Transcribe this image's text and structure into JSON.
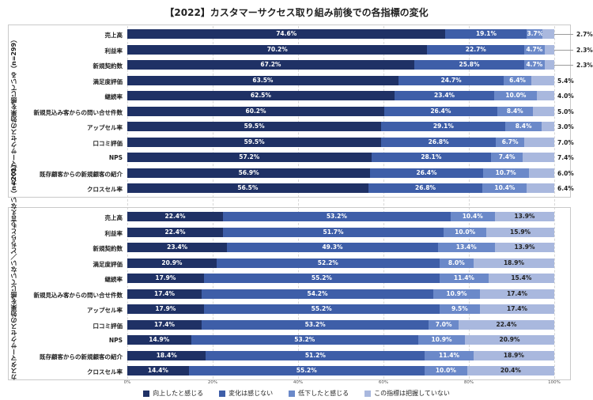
{
  "chart_data": {
    "type": "bar",
    "orientation": "horizontal-stacked-100",
    "title": "【2022】カスタマーサクセス取り組み前後での各指標の変化",
    "xlim": [
      0,
      100
    ],
    "x_ticks": [
      "0%",
      "20%",
      "40%",
      "60%",
      "80%",
      "100%"
    ],
    "legend_position": "bottom",
    "series_names": [
      "向上したと感じる",
      "変化は感じない",
      "低下したと感じる",
      "この指標は把握していない"
    ],
    "series_colors": [
      "#1f3165",
      "#3e5ea8",
      "#6b89c9",
      "#a9b8de"
    ],
    "groups": [
      {
        "label": "カスタマーサクセスの効果を感じている（n=299）",
        "categories": [
          "売上高",
          "利益率",
          "新規契約数",
          "満足度評価",
          "継続率",
          "新規見込み客からの問い合せ件数",
          "アップセル率",
          "口コミ評価",
          "NPS",
          "既存顧客からの新規顧客の紹介",
          "クロスセル率"
        ],
        "values": [
          [
            74.6,
            19.1,
            3.7,
            2.7
          ],
          [
            70.2,
            22.7,
            4.7,
            2.3
          ],
          [
            67.2,
            25.8,
            4.7,
            2.3
          ],
          [
            63.5,
            24.7,
            6.4,
            5.4
          ],
          [
            62.5,
            23.4,
            10.0,
            4.0
          ],
          [
            60.2,
            26.4,
            8.4,
            5.0
          ],
          [
            59.5,
            29.1,
            8.4,
            3.0
          ],
          [
            59.5,
            26.8,
            6.7,
            7.0
          ],
          [
            57.2,
            28.1,
            7.4,
            7.4
          ],
          [
            56.9,
            26.4,
            10.7,
            6.0
          ],
          [
            56.5,
            26.8,
            10.4,
            6.4
          ]
        ],
        "labels": [
          [
            "74.6%",
            "19.1%",
            "3.7%",
            "2.7%"
          ],
          [
            "70.2%",
            "22.7%",
            "4.7%",
            "2.3%"
          ],
          [
            "67.2%",
            "25.8%",
            "4.7%",
            "2.3%"
          ],
          [
            "63.5%",
            "24.7%",
            "6.4%",
            "5.4%"
          ],
          [
            "62.5%",
            "23.4%",
            "10.0%",
            "4.0%"
          ],
          [
            "60.2%",
            "26.4%",
            "8.4%",
            "5.0%"
          ],
          [
            "59.5%",
            "29.1%",
            "8.4%",
            "3.0%"
          ],
          [
            "59.5%",
            "26.8%",
            "6.7%",
            "7.0%"
          ],
          [
            "57.2%",
            "28.1%",
            "7.4%",
            "7.4%"
          ],
          [
            "56.9%",
            "26.4%",
            "10.7%",
            "6.0%"
          ],
          [
            "56.5%",
            "26.8%",
            "10.4%",
            "6.4%"
          ]
        ]
      },
      {
        "label": "カスタマーサクセスの効果を感じていない／どちらとも言えない（n=201）",
        "categories": [
          "売上高",
          "利益率",
          "新規契約数",
          "満足度評価",
          "継続率",
          "新規見込み客からの問い合せ件数",
          "アップセル率",
          "口コミ評価",
          "NPS",
          "既存顧客からの新規顧客の紹介",
          "クロスセル率"
        ],
        "values": [
          [
            22.4,
            53.2,
            10.4,
            13.9
          ],
          [
            22.4,
            51.7,
            10.0,
            15.9
          ],
          [
            23.4,
            49.3,
            13.4,
            13.9
          ],
          [
            20.9,
            52.2,
            8.0,
            18.9
          ],
          [
            17.9,
            55.2,
            11.4,
            15.4
          ],
          [
            17.4,
            54.2,
            10.9,
            17.4
          ],
          [
            17.9,
            55.2,
            9.5,
            17.4
          ],
          [
            17.4,
            53.2,
            7.0,
            22.4
          ],
          [
            14.9,
            53.2,
            10.9,
            20.9
          ],
          [
            18.4,
            51.2,
            11.4,
            18.9
          ],
          [
            14.4,
            55.2,
            10.0,
            20.4
          ]
        ],
        "labels": [
          [
            "22.4%",
            "53.2%",
            "10.4%",
            "13.9%"
          ],
          [
            "22.4%",
            "51.7%",
            "10.0%",
            "15.9%"
          ],
          [
            "23.4%",
            "49.3%",
            "13.4%",
            "13.9%"
          ],
          [
            "20.9%",
            "52.2%",
            "8.0%",
            "18.9%"
          ],
          [
            "17.9%",
            "55.2%",
            "11.4%",
            "15.4%"
          ],
          [
            "17.4%",
            "54.2%",
            "10.9%",
            "17.4%"
          ],
          [
            "17.9%",
            "55.2%",
            "9.5%",
            "17.4%"
          ],
          [
            "17.4%",
            "53.2%",
            "7.0%",
            "22.4%"
          ],
          [
            "14.9%",
            "53.2%",
            "10.9%",
            "20.9%"
          ],
          [
            "18.4%",
            "51.2%",
            "11.4%",
            "18.9%"
          ],
          [
            "14.4%",
            "55.2%",
            "10.0%",
            "20.4%"
          ]
        ]
      }
    ]
  }
}
